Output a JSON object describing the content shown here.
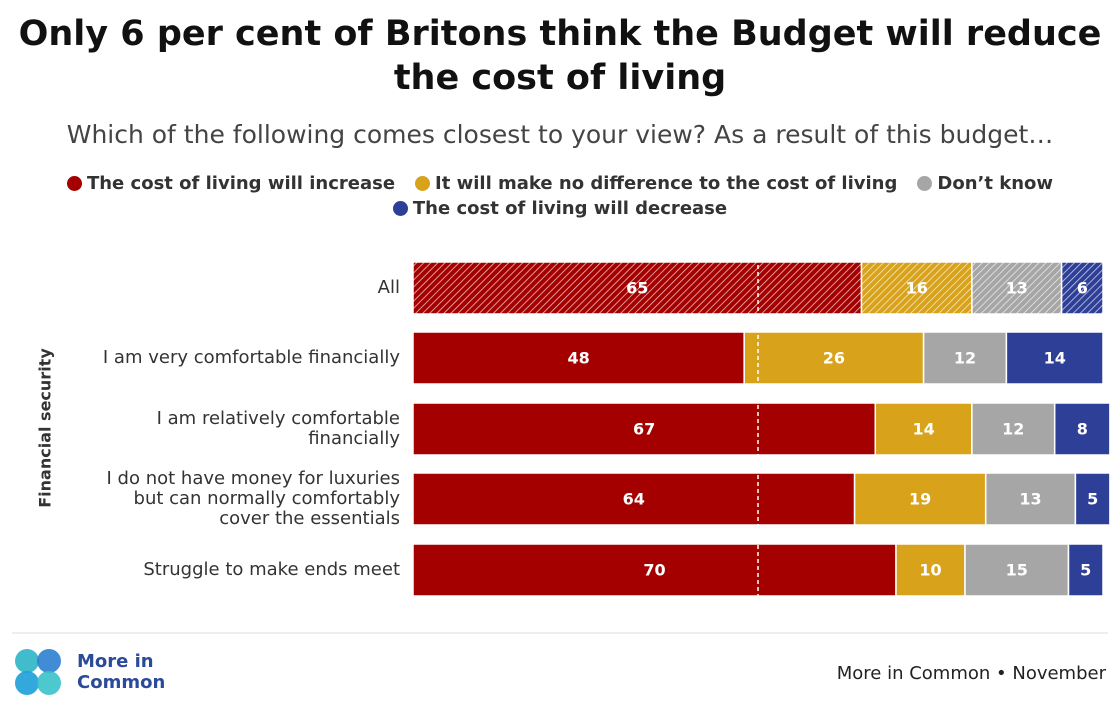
{
  "chart_data": {
    "type": "stacked_bar_horizontal",
    "title": "Only 6 per cent of Britons think the Budget will reduce the cost of living",
    "subtitle": "Which of the following comes closest to your view? As a result of this budget…",
    "group_label": "Financial security",
    "categories": [
      "All",
      "I am very comfortable financially",
      "I am relatively comfortable financially",
      "I do not have money for luxuries but can normally comfortably cover the essentials",
      "Struggle to make ends meet"
    ],
    "hatched": [
      true,
      false,
      false,
      false,
      false
    ],
    "series": [
      {
        "name": "The cost of living will increase",
        "color": "#a50000",
        "values": [
          65,
          48,
          67,
          64,
          70
        ]
      },
      {
        "name": "It will make no difference to the cost of living",
        "color": "#d9a21b",
        "values": [
          16,
          26,
          14,
          19,
          10
        ]
      },
      {
        "name": "Don’t know",
        "color": "#a6a6a6",
        "values": [
          13,
          12,
          12,
          13,
          15
        ]
      },
      {
        "name": "The cost of living will decrease",
        "color": "#2e3f97",
        "values": [
          6,
          14,
          8,
          5,
          5
        ]
      }
    ],
    "xlim": [
      0,
      100
    ],
    "midline": 50,
    "logo": "More in Common",
    "source": "More in Common • November"
  }
}
